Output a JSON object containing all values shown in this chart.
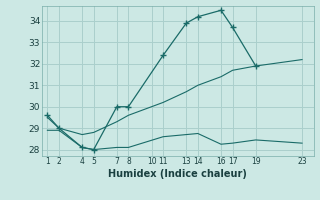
{
  "xlabel": "Humidex (Indice chaleur)",
  "background_color": "#cce8e4",
  "grid_color": "#aacfcc",
  "line_color": "#1a6b68",
  "xlim": [
    0.5,
    24
  ],
  "ylim": [
    27.7,
    34.7
  ],
  "yticks": [
    28,
    29,
    30,
    31,
    32,
    33,
    34
  ],
  "xtick_positions": [
    1,
    2,
    4,
    5,
    7,
    8,
    10,
    11,
    13,
    14,
    16,
    17,
    19,
    23
  ],
  "xtick_labels": [
    "1",
    "2",
    "4",
    "5",
    "7",
    "8",
    "10",
    "11",
    "13",
    "14",
    "16",
    "17",
    "19",
    "23"
  ],
  "line1_x": [
    1,
    2,
    4,
    5,
    7,
    8,
    11,
    13,
    14,
    16,
    17,
    19
  ],
  "line1_y": [
    29.6,
    29.0,
    28.1,
    28.0,
    30.0,
    30.0,
    32.4,
    33.9,
    34.2,
    34.5,
    33.7,
    31.9
  ],
  "line2_x": [
    1,
    2,
    4,
    5,
    7,
    8,
    11,
    13,
    14,
    16,
    17,
    19,
    23
  ],
  "line2_y": [
    29.5,
    29.0,
    28.7,
    28.8,
    29.3,
    29.6,
    30.2,
    30.7,
    31.0,
    31.4,
    31.7,
    31.9,
    32.2
  ],
  "line3_x": [
    1,
    2,
    4,
    5,
    7,
    8,
    11,
    13,
    14,
    16,
    17,
    19,
    23
  ],
  "line3_y": [
    28.9,
    28.9,
    28.1,
    28.0,
    28.1,
    28.1,
    28.6,
    28.7,
    28.75,
    28.25,
    28.3,
    28.45,
    28.3
  ]
}
